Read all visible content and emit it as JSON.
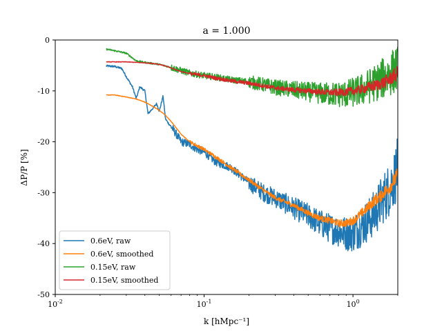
{
  "chart_data": {
    "type": "line",
    "title": "a = 1.000",
    "xlabel": "k [hMpc⁻¹]",
    "ylabel": "ΔP/P [%]",
    "xscale": "log",
    "xlim": [
      0.01,
      2.0
    ],
    "ylim": [
      -50,
      0
    ],
    "grid": false,
    "legend_placement": "lower-left",
    "x_ticks": [
      {
        "value": 0.01,
        "base": "10",
        "exp": "-2"
      },
      {
        "value": 0.1,
        "base": "10",
        "exp": "-1"
      },
      {
        "value": 1,
        "base": "10",
        "exp": "0"
      }
    ],
    "y_ticks": [
      {
        "value": 0,
        "label": "0"
      },
      {
        "value": -10,
        "label": "-10"
      },
      {
        "value": -20,
        "label": "-20"
      },
      {
        "value": -30,
        "label": "-30"
      },
      {
        "value": -40,
        "label": "-40"
      },
      {
        "value": -50,
        "label": "-50"
      }
    ],
    "series": [
      {
        "name": "0.6eV, raw",
        "color": "#1f77b4",
        "x": [
          0.022,
          0.025,
          0.028,
          0.03,
          0.033,
          0.035,
          0.037,
          0.04,
          0.042,
          0.045,
          0.048,
          0.05,
          0.053,
          0.055,
          0.058,
          0.06,
          0.065,
          0.07,
          0.08,
          0.09,
          0.1,
          0.12,
          0.15,
          0.2,
          0.25,
          0.3,
          0.4,
          0.5,
          0.6,
          0.7,
          0.8,
          0.9,
          1.0,
          1.1,
          1.2,
          1.3,
          1.4,
          1.5,
          1.6,
          1.7,
          1.8,
          1.9,
          2.0
        ],
        "y": [
          -5.1,
          -5.2,
          -5.6,
          -7.2,
          -9.2,
          -11.5,
          -9.2,
          -10.0,
          -14.5,
          -13.5,
          -12.5,
          -14.0,
          -11.0,
          -15.5,
          -16.5,
          -17.0,
          -18.5,
          -20.0,
          -20.5,
          -21.5,
          -22.0,
          -24.0,
          -25.0,
          -28.0,
          -30.0,
          -31.0,
          -33.0,
          -34.5,
          -36.0,
          -37.0,
          -37.5,
          -38.0,
          -38.0,
          -37.0,
          -36.0,
          -35.0,
          -34.0,
          -32.5,
          -31.0,
          -30.0,
          -28.5,
          -27.0,
          -25.0
        ]
      },
      {
        "name": "0.6eV, smoothed",
        "color": "#ff7f0e",
        "x": [
          0.022,
          0.025,
          0.03,
          0.035,
          0.04,
          0.045,
          0.05,
          0.055,
          0.06,
          0.07,
          0.08,
          0.1,
          0.12,
          0.15,
          0.2,
          0.25,
          0.3,
          0.4,
          0.5,
          0.6,
          0.7,
          0.8,
          0.9,
          1.0,
          1.1,
          1.2,
          1.3,
          1.4,
          1.5,
          1.6,
          1.7,
          1.8,
          1.9,
          2.0
        ],
        "y": [
          -10.8,
          -10.8,
          -11.2,
          -11.6,
          -12.2,
          -13.0,
          -13.8,
          -14.8,
          -16.0,
          -18.5,
          -20.0,
          -21.5,
          -23.0,
          -25.0,
          -27.5,
          -29.5,
          -31.0,
          -32.5,
          -34.0,
          -35.0,
          -35.5,
          -36.0,
          -36.0,
          -35.5,
          -34.5,
          -33.5,
          -32.5,
          -31.5,
          -31.0,
          -30.0,
          -29.5,
          -28.5,
          -27.5,
          -26.5
        ]
      },
      {
        "name": "0.15eV, raw",
        "color": "#2ca02c",
        "x": [
          0.022,
          0.025,
          0.03,
          0.035,
          0.04,
          0.05,
          0.06,
          0.07,
          0.08,
          0.1,
          0.12,
          0.15,
          0.2,
          0.25,
          0.3,
          0.4,
          0.5,
          0.6,
          0.7,
          0.8,
          0.9,
          1.0,
          1.1,
          1.2,
          1.3,
          1.4,
          1.5,
          1.6,
          1.7,
          1.8,
          1.9,
          2.0
        ],
        "y": [
          -1.8,
          -2.1,
          -2.6,
          -4.1,
          -4.4,
          -4.8,
          -5.4,
          -6.0,
          -6.5,
          -7.0,
          -7.3,
          -7.8,
          -8.2,
          -8.8,
          -9.3,
          -9.8,
          -10.2,
          -10.5,
          -10.6,
          -10.7,
          -10.6,
          -10.3,
          -10.0,
          -9.5,
          -9.0,
          -8.5,
          -8.0,
          -7.5,
          -7.0,
          -6.5,
          -6.0,
          -5.8
        ]
      },
      {
        "name": "0.15eV, smoothed",
        "color": "#d62728",
        "x": [
          0.022,
          0.025,
          0.03,
          0.035,
          0.04,
          0.045,
          0.05,
          0.055,
          0.06,
          0.07,
          0.08,
          0.1,
          0.12,
          0.15,
          0.2,
          0.25,
          0.3,
          0.4,
          0.5,
          0.6,
          0.7,
          0.8,
          0.9,
          1.0,
          1.1,
          1.2,
          1.3,
          1.4,
          1.5,
          1.6,
          1.7,
          1.8,
          1.9,
          2.0
        ],
        "y": [
          -4.3,
          -4.3,
          -4.3,
          -4.4,
          -4.5,
          -4.6,
          -4.8,
          -5.1,
          -5.5,
          -6.2,
          -6.6,
          -7.0,
          -7.5,
          -8.0,
          -8.5,
          -9.0,
          -9.4,
          -9.8,
          -10.0,
          -10.2,
          -10.3,
          -10.3,
          -10.2,
          -10.0,
          -9.8,
          -9.5,
          -9.2,
          -9.0,
          -8.7,
          -8.4,
          -8.0,
          -7.5,
          -7.0,
          -6.5
        ]
      }
    ]
  }
}
